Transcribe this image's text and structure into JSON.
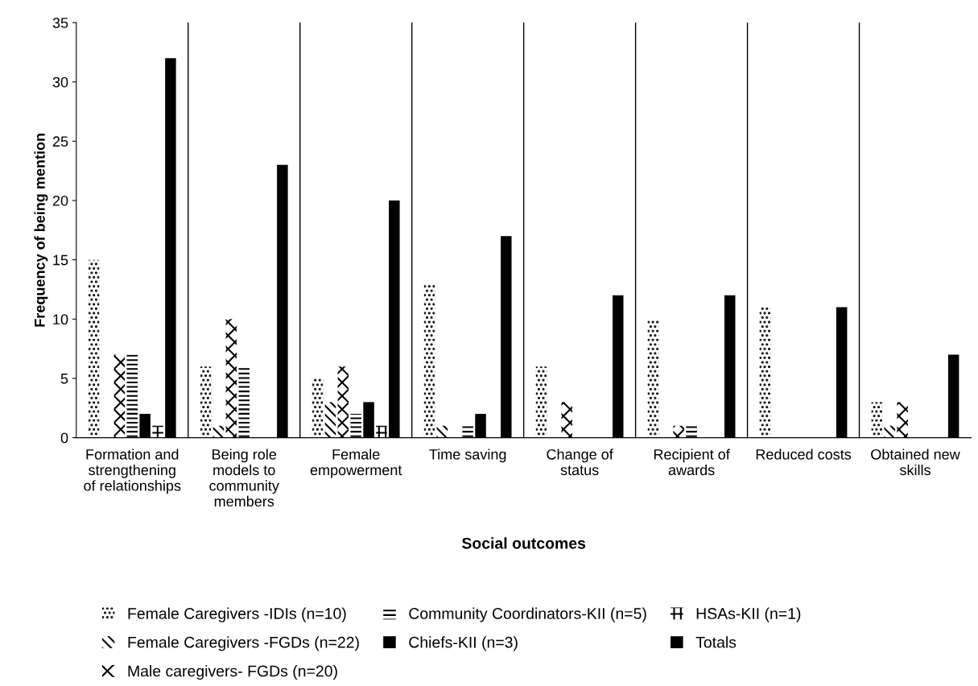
{
  "chart_data": {
    "type": "bar",
    "xlabel": "Social outcomes",
    "ylabel": "Frequency of being mention",
    "categories": [
      "Formation and\nstrengthening\nof relationships",
      "Being role\nmodels to\ncommunity\nmembers",
      "Female\nempowerment",
      "Time saving",
      "Change of\nstatus",
      "Recipient of\nawards",
      "Reduced costs",
      "Obtained new\nskills"
    ],
    "series": [
      {
        "name": "Female Caregivers -IDIs (n=10)",
        "color": "#000000",
        "values": [
          15,
          6,
          5,
          13,
          6,
          10,
          11,
          3
        ]
      },
      {
        "name": "Female Caregivers -FGDs (n=22)",
        "color": "#000000",
        "values": [
          0,
          1,
          3,
          1,
          0,
          0,
          0,
          1
        ]
      },
      {
        "name": "Male caregivers- FGDs (n=20)",
        "color": "#000000",
        "values": [
          7,
          10,
          6,
          0,
          3,
          1,
          0,
          3
        ]
      },
      {
        "name": "Community Coordinators-KII (n=5)",
        "color": "#000000",
        "values": [
          7,
          6,
          2,
          1,
          0,
          1,
          0,
          0
        ]
      },
      {
        "name": "Chiefs-KII (n=3)",
        "color": "#000000",
        "values": [
          2,
          0,
          3,
          2,
          0,
          0,
          0,
          0
        ]
      },
      {
        "name": "HSAs-KII (n=1)",
        "color": "#000000",
        "values": [
          1,
          0,
          1,
          0,
          0,
          0,
          0,
          0
        ]
      },
      {
        "name": "Totals",
        "color": "#000000",
        "values": [
          32,
          23,
          20,
          17,
          12,
          12,
          11,
          7
        ]
      }
    ],
    "ylim": [
      0,
      35
    ],
    "yticks": [
      0,
      5,
      10,
      15,
      20,
      25,
      30,
      35
    ],
    "grid": "x",
    "legend": "bottom"
  }
}
